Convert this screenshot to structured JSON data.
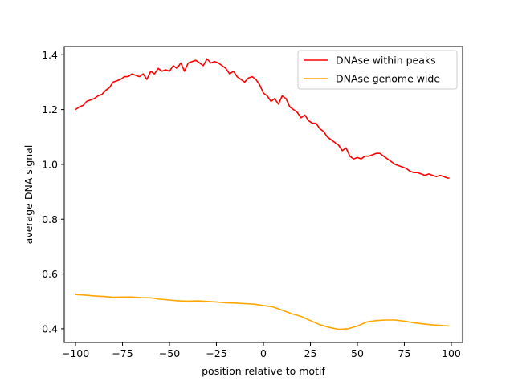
{
  "chart_data": {
    "type": "line",
    "xlabel": "position relative to motif",
    "ylabel": "average DNA signal",
    "xlim": [
      -106,
      106
    ],
    "ylim": [
      0.35,
      1.43
    ],
    "xticks": [
      -100,
      -75,
      -50,
      -25,
      0,
      25,
      50,
      75,
      100
    ],
    "xtick_labels": [
      "−100",
      "−75",
      "−50",
      "−25",
      "0",
      "25",
      "50",
      "75",
      "100"
    ],
    "yticks": [
      0.4,
      0.6,
      0.8,
      1.0,
      1.2,
      1.4
    ],
    "ytick_labels": [
      "0.4",
      "0.6",
      "0.8",
      "1.0",
      "1.2",
      "1.4"
    ],
    "grid": false,
    "legend_position": "top-right",
    "series": [
      {
        "name": "DNAse within peaks",
        "color": "#ff0000",
        "x": [
          -100,
          -98,
          -96,
          -94,
          -92,
          -90,
          -88,
          -86,
          -84,
          -82,
          -80,
          -78,
          -76,
          -74,
          -72,
          -70,
          -68,
          -66,
          -64,
          -62,
          -60,
          -58,
          -56,
          -54,
          -52,
          -50,
          -48,
          -46,
          -44,
          -42,
          -40,
          -38,
          -36,
          -34,
          -32,
          -30,
          -28,
          -26,
          -24,
          -22,
          -20,
          -18,
          -16,
          -14,
          -12,
          -10,
          -8,
          -6,
          -4,
          -2,
          0,
          2,
          4,
          6,
          8,
          10,
          12,
          14,
          16,
          18,
          20,
          22,
          24,
          26,
          28,
          30,
          32,
          34,
          36,
          38,
          40,
          42,
          44,
          46,
          48,
          50,
          52,
          54,
          56,
          58,
          60,
          62,
          64,
          66,
          68,
          70,
          72,
          74,
          76,
          78,
          80,
          82,
          84,
          86,
          88,
          90,
          92,
          94,
          96,
          98,
          99
        ],
        "y": [
          1.2,
          1.21,
          1.215,
          1.23,
          1.235,
          1.24,
          1.25,
          1.255,
          1.27,
          1.28,
          1.3,
          1.305,
          1.31,
          1.32,
          1.32,
          1.33,
          1.325,
          1.32,
          1.33,
          1.31,
          1.34,
          1.33,
          1.35,
          1.34,
          1.345,
          1.34,
          1.36,
          1.35,
          1.37,
          1.34,
          1.37,
          1.375,
          1.38,
          1.37,
          1.36,
          1.385,
          1.37,
          1.375,
          1.37,
          1.36,
          1.35,
          1.33,
          1.34,
          1.32,
          1.31,
          1.3,
          1.315,
          1.32,
          1.31,
          1.29,
          1.26,
          1.25,
          1.23,
          1.24,
          1.22,
          1.25,
          1.24,
          1.21,
          1.2,
          1.19,
          1.17,
          1.18,
          1.16,
          1.15,
          1.15,
          1.13,
          1.12,
          1.1,
          1.09,
          1.08,
          1.07,
          1.05,
          1.06,
          1.03,
          1.02,
          1.025,
          1.02,
          1.03,
          1.03,
          1.035,
          1.04,
          1.04,
          1.03,
          1.02,
          1.01,
          1.0,
          0.995,
          0.99,
          0.985,
          0.975,
          0.97,
          0.97,
          0.965,
          0.96,
          0.965,
          0.96,
          0.955,
          0.96,
          0.955,
          0.95,
          0.95
        ]
      },
      {
        "name": "DNAse genome wide",
        "color": "#ffa500",
        "x": [
          -100,
          -95,
          -90,
          -85,
          -80,
          -75,
          -70,
          -65,
          -60,
          -55,
          -50,
          -45,
          -40,
          -35,
          -30,
          -25,
          -20,
          -15,
          -10,
          -5,
          0,
          5,
          10,
          15,
          20,
          25,
          30,
          35,
          40,
          45,
          50,
          55,
          60,
          65,
          70,
          75,
          80,
          85,
          90,
          95,
          99
        ],
        "y": [
          0.525,
          0.523,
          0.52,
          0.518,
          0.515,
          0.516,
          0.516,
          0.514,
          0.513,
          0.508,
          0.505,
          0.502,
          0.501,
          0.502,
          0.5,
          0.498,
          0.495,
          0.494,
          0.492,
          0.49,
          0.485,
          0.48,
          0.468,
          0.455,
          0.445,
          0.43,
          0.415,
          0.405,
          0.398,
          0.4,
          0.41,
          0.425,
          0.43,
          0.432,
          0.432,
          0.428,
          0.422,
          0.418,
          0.414,
          0.412,
          0.41
        ]
      }
    ]
  }
}
